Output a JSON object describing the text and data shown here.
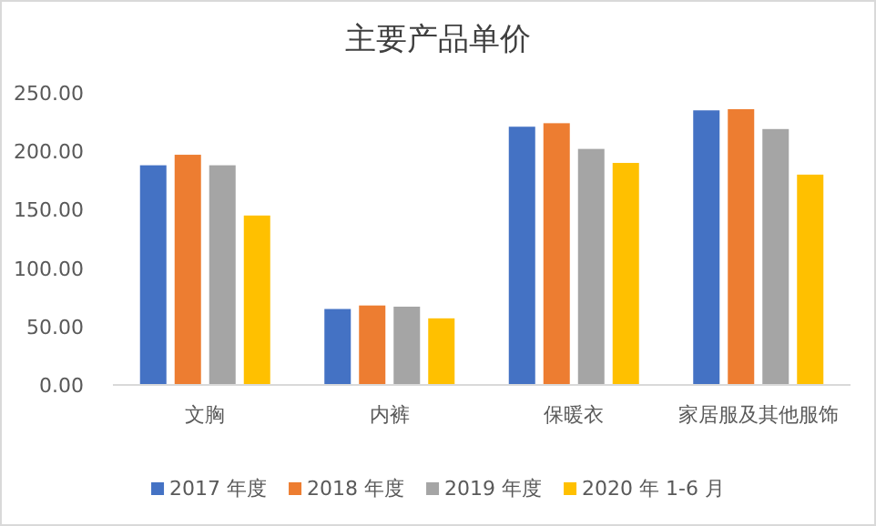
{
  "chart_data": {
    "type": "bar",
    "title": "主要产品单价",
    "categories": [
      "文胸",
      "内裤",
      "保暖衣",
      "家居服及其他服饰"
    ],
    "series": [
      {
        "name": "2017 年度",
        "color": "#4472c4",
        "values": [
          188,
          65,
          221,
          235
        ]
      },
      {
        "name": "2018 年度",
        "color": "#ed7d31",
        "values": [
          197,
          68,
          224,
          236
        ]
      },
      {
        "name": "2019 年度",
        "color": "#a5a5a5",
        "values": [
          188,
          67,
          202,
          219
        ]
      },
      {
        "name": "2020 年 1-6 月",
        "color": "#ffc000",
        "values": [
          145,
          57,
          190,
          180
        ]
      }
    ],
    "ylim": [
      0,
      250
    ],
    "yticks": [
      {
        "value": 0,
        "label": "0.00"
      },
      {
        "value": 50,
        "label": "50.00"
      },
      {
        "value": 100,
        "label": "100.00"
      },
      {
        "value": 150,
        "label": "150.00"
      },
      {
        "value": 200,
        "label": "200.00"
      },
      {
        "value": 250,
        "label": "250.00"
      }
    ],
    "grid": false,
    "legend": "bottom"
  }
}
